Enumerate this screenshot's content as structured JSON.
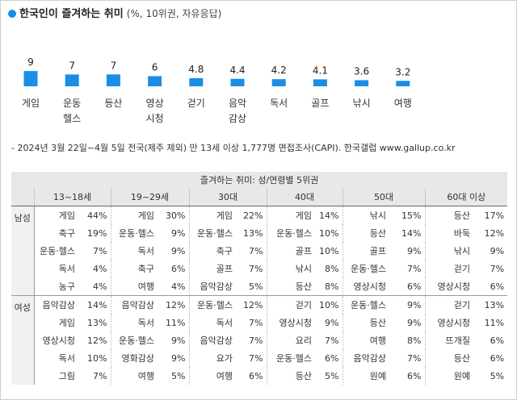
{
  "note": "- 2024년 3월 22일~4월 5일 전국(제주 제외) 만 13세 이상 1,777명 면접조사(CAPI). 한국갤럽 www.gallup.co.kr",
  "colors": {
    "accent": "#1a8ee6",
    "header_bg": "#e8e8e8",
    "side_bg": "#f1f1f1"
  },
  "chart_data": [
    {
      "type": "bar",
      "title": "한국인이 즐겨하는 취미",
      "subtitle": "(%, 10위권, 자유응답)",
      "categories": [
        "게임",
        "운동\n헬스",
        "등산",
        "영상\n시청",
        "걷기",
        "음악\n감상",
        "독서",
        "골프",
        "낚시",
        "여행"
      ],
      "values": [
        9,
        7,
        7,
        6,
        4.8,
        4.4,
        4.2,
        4.1,
        3.6,
        3.2
      ],
      "value_labels": [
        "9",
        "7",
        "7",
        "6",
        "4.8",
        "4.4",
        "4.2",
        "4.1",
        "3.6",
        "3.2"
      ],
      "ylim": [
        0,
        9
      ],
      "grid": false,
      "color": "#1a8ee6"
    },
    {
      "type": "table",
      "title": "즐겨하는 취미: 성/연령별 5위권",
      "groups": [
        "13~18세",
        "19~29세",
        "30대",
        "40대",
        "50대",
        "60대 이상"
      ],
      "rows": [
        {
          "sex": "남성",
          "group": "male",
          "cells": [
            [
              [
                "게임",
                "44%"
              ],
              [
                "게임",
                "30%"
              ],
              [
                "게임",
                "22%"
              ],
              [
                "게임",
                "14%"
              ],
              [
                "낚시",
                "15%"
              ],
              [
                "등산",
                "17%"
              ]
            ],
            [
              [
                "축구",
                "19%"
              ],
              [
                "운동·헬스",
                "9%"
              ],
              [
                "운동·헬스",
                "13%"
              ],
              [
                "운동·헬스",
                "10%"
              ],
              [
                "등산",
                "14%"
              ],
              [
                "바둑",
                "12%"
              ]
            ],
            [
              [
                "운동·헬스",
                "7%"
              ],
              [
                "독서",
                "9%"
              ],
              [
                "축구",
                "7%"
              ],
              [
                "골프",
                "10%"
              ],
              [
                "골프",
                "9%"
              ],
              [
                "낚시",
                "9%"
              ]
            ],
            [
              [
                "독서",
                "4%"
              ],
              [
                "축구",
                "6%"
              ],
              [
                "골프",
                "7%"
              ],
              [
                "낚시",
                "8%"
              ],
              [
                "운동·헬스",
                "7%"
              ],
              [
                "걷기",
                "7%"
              ]
            ],
            [
              [
                "농구",
                "4%"
              ],
              [
                "여행",
                "4%"
              ],
              [
                "음악감상",
                "5%"
              ],
              [
                "등산",
                "8%"
              ],
              [
                "영상시청",
                "6%"
              ],
              [
                "영상시청",
                "6%"
              ]
            ]
          ]
        },
        {
          "sex": "여성",
          "group": "female",
          "cells": [
            [
              [
                "음악감상",
                "14%"
              ],
              [
                "음악감상",
                "12%"
              ],
              [
                "운동·헬스",
                "12%"
              ],
              [
                "걷기",
                "10%"
              ],
              [
                "운동·헬스",
                "9%"
              ],
              [
                "걷기",
                "13%"
              ]
            ],
            [
              [
                "게임",
                "13%"
              ],
              [
                "독서",
                "11%"
              ],
              [
                "독서",
                "7%"
              ],
              [
                "영상시청",
                "9%"
              ],
              [
                "등산",
                "9%"
              ],
              [
                "영상시청",
                "11%"
              ]
            ],
            [
              [
                "영상시청",
                "12%"
              ],
              [
                "운동·헬스",
                "9%"
              ],
              [
                "음악감상",
                "7%"
              ],
              [
                "요리",
                "7%"
              ],
              [
                "여행",
                "8%"
              ],
              [
                "뜨개질",
                "6%"
              ]
            ],
            [
              [
                "독서",
                "10%"
              ],
              [
                "영화감상",
                "9%"
              ],
              [
                "요가",
                "7%"
              ],
              [
                "운동·헬스",
                "6%"
              ],
              [
                "음악감상",
                "7%"
              ],
              [
                "등산",
                "6%"
              ]
            ],
            [
              [
                "그림",
                "7%"
              ],
              [
                "여행",
                "5%"
              ],
              [
                "여행",
                "6%"
              ],
              [
                "등산",
                "5%"
              ],
              [
                "원예",
                "6%"
              ],
              [
                "원예",
                "5%"
              ]
            ]
          ]
        }
      ]
    }
  ]
}
